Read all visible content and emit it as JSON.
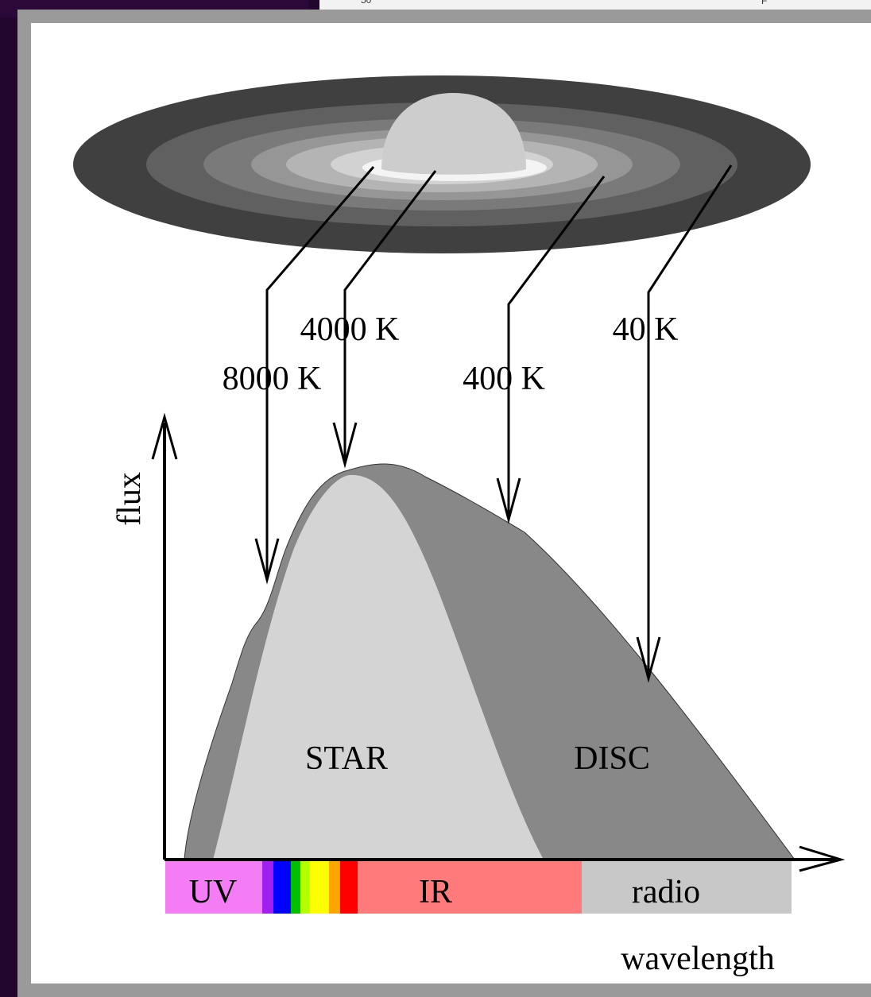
{
  "background_fragments": {
    "left": "50",
    "right": "F"
  },
  "colors": {
    "frame": "#9a9a9a",
    "uv": "#f47cf4",
    "violet": "#a020f0",
    "blue": "#0000ff",
    "green": "#00c000",
    "lime": "#b4ff00",
    "yellow": "#ffff00",
    "orange": "#ffa500",
    "red": "#ff0000",
    "ir": "#ff7b7b",
    "radio": "#c8c8c8",
    "star": "#d4d4d4",
    "disc": "#888888"
  },
  "disc_image": {
    "temperatures": [
      {
        "label": "8000 K"
      },
      {
        "label": "4000 K"
      },
      {
        "label": "400 K"
      },
      {
        "label": "40 K"
      }
    ]
  },
  "sed": {
    "y_label": "flux",
    "x_label": "wavelength",
    "components": {
      "star": "STAR",
      "disc": "DISC"
    }
  },
  "spectrum_bands": [
    {
      "label": "UV"
    },
    {
      "label": "IR"
    },
    {
      "label": "radio"
    }
  ]
}
